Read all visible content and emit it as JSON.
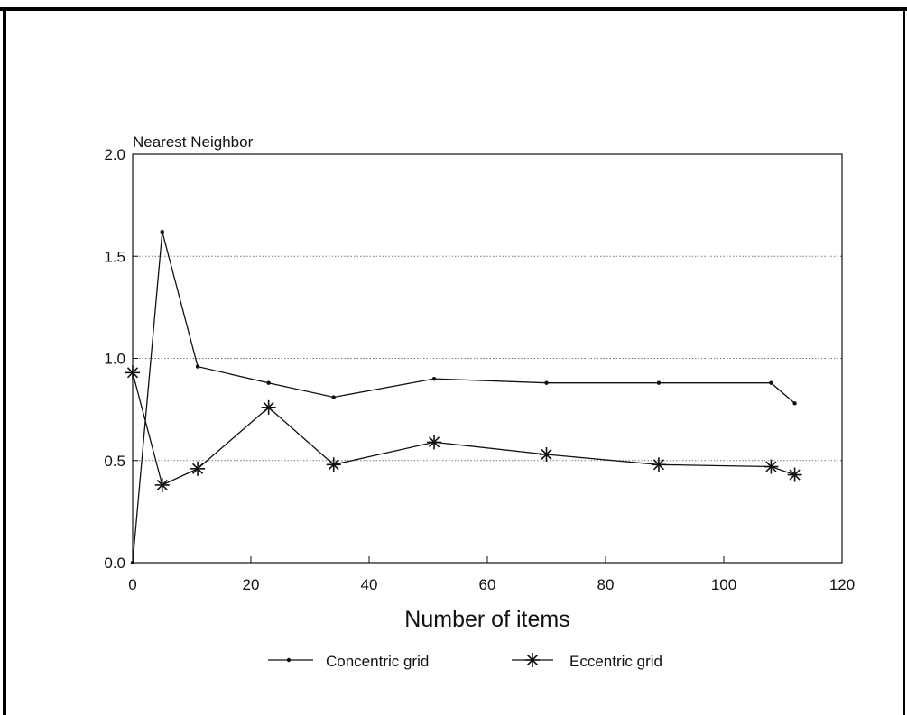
{
  "chart_data": {
    "type": "line",
    "title": "",
    "xlabel": "Number of items",
    "ylabel": "Nearest Neighbor",
    "xlim": [
      0,
      120
    ],
    "ylim": [
      0.0,
      2.0
    ],
    "x_ticks": [
      "0",
      "20",
      "40",
      "60",
      "80",
      "100",
      "120"
    ],
    "y_ticks": [
      "0.0",
      "0.5",
      "1.0",
      "1.5",
      "2.0"
    ],
    "grid": "horizontal",
    "legend_position": "bottom",
    "series": [
      {
        "name": "Concentric grid",
        "marker": "dot",
        "x": [
          0,
          5,
          11,
          23,
          34,
          51,
          70,
          89,
          108,
          112
        ],
        "y": [
          0.0,
          1.62,
          0.96,
          0.88,
          0.81,
          0.9,
          0.88,
          0.88,
          0.88,
          0.78
        ]
      },
      {
        "name": "Eccentric grid",
        "marker": "star",
        "x": [
          0,
          5,
          11,
          23,
          34,
          51,
          70,
          89,
          108,
          112
        ],
        "y": [
          0.93,
          0.38,
          0.46,
          0.76,
          0.48,
          0.59,
          0.53,
          0.48,
          0.47,
          0.43
        ]
      }
    ]
  }
}
